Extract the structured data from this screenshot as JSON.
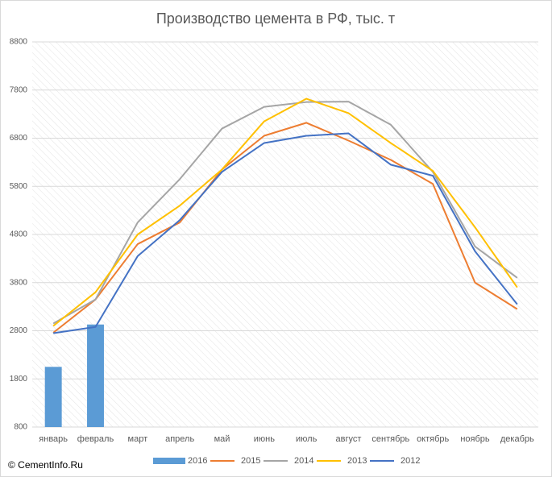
{
  "chart_data": {
    "type": "combo",
    "title": "Производство цемента в РФ, тыс. т",
    "footer": "© CementInfo.Ru",
    "categories": [
      "январь",
      "февраль",
      "март",
      "апрель",
      "май",
      "июнь",
      "июль",
      "август",
      "сентябрь",
      "октябрь",
      "ноябрь",
      "декабрь"
    ],
    "ylim": [
      800,
      8800
    ],
    "yticks": [
      800,
      1800,
      2800,
      3800,
      4800,
      5800,
      6800,
      7800,
      8800
    ],
    "grid": true,
    "legend": "bottom",
    "series": [
      {
        "name": "2016",
        "kind": "bar",
        "color": "#5b9bd5",
        "values": [
          2050,
          2930,
          null,
          null,
          null,
          null,
          null,
          null,
          null,
          null,
          null,
          null
        ]
      },
      {
        "name": "2015",
        "kind": "line",
        "color": "#ed7d31",
        "values": [
          2760,
          3450,
          4600,
          5050,
          6150,
          6850,
          7120,
          6750,
          6350,
          5850,
          3800,
          3250
        ]
      },
      {
        "name": "2014",
        "kind": "line",
        "color": "#a5a5a5",
        "values": [
          2950,
          3450,
          5050,
          5950,
          7000,
          7450,
          7550,
          7560,
          7080,
          6100,
          4550,
          3900
        ]
      },
      {
        "name": "2013",
        "kind": "line",
        "color": "#ffc000",
        "values": [
          2900,
          3600,
          4800,
          5400,
          6150,
          7150,
          7620,
          7320,
          6700,
          6120,
          4950,
          3700
        ]
      },
      {
        "name": "2012",
        "kind": "line",
        "color": "#4472c4",
        "values": [
          2750,
          2880,
          4350,
          5100,
          6100,
          6700,
          6850,
          6900,
          6250,
          6020,
          4450,
          3350
        ]
      }
    ]
  }
}
